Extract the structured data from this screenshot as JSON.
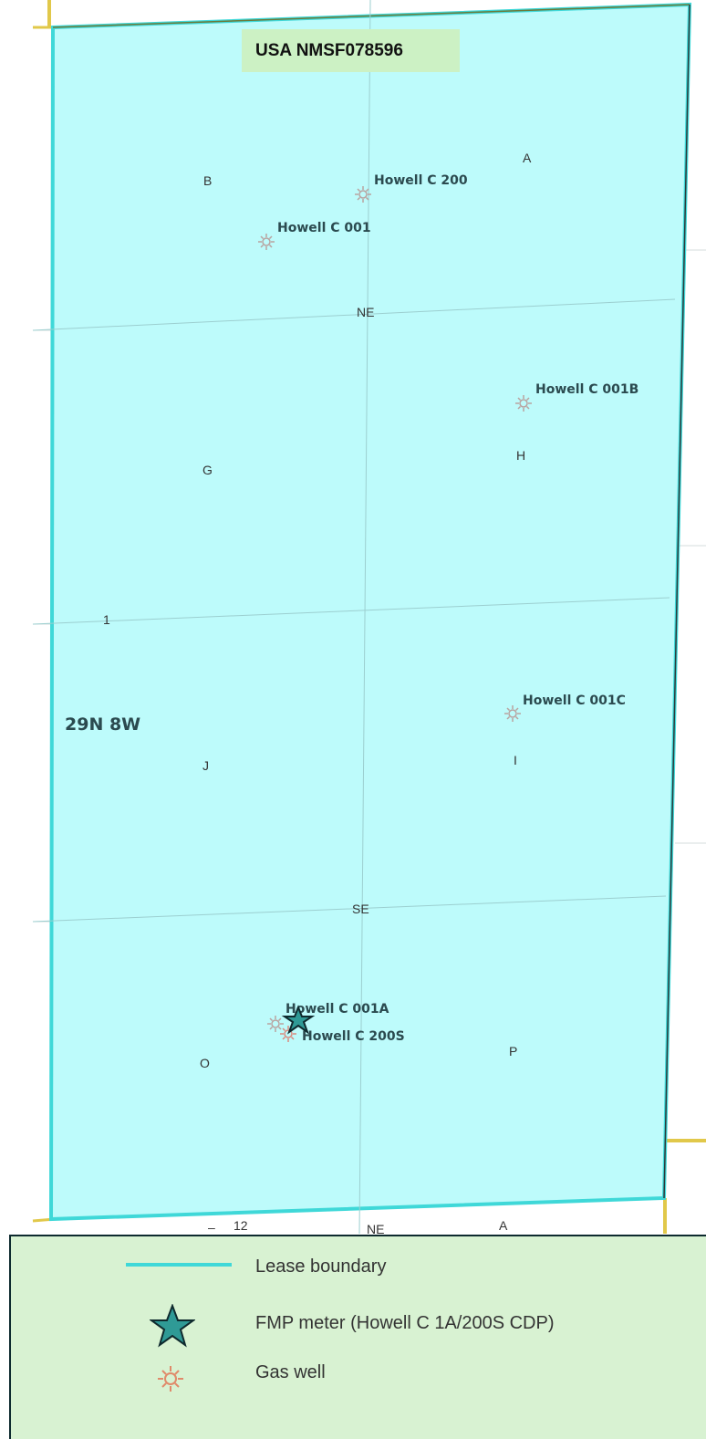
{
  "lease": {
    "name": "USA NMSF078596"
  },
  "township": {
    "label": "29N 8W"
  },
  "section_labels": {
    "section": "1",
    "quarter_ne": "NE",
    "quarter_se": "SE",
    "next_section": "12",
    "next_quarter": "NE",
    "next_lot": "A"
  },
  "lots": [
    "A",
    "B",
    "G",
    "H",
    "I",
    "J",
    "O",
    "P"
  ],
  "wells": [
    {
      "name": "Howell C 200"
    },
    {
      "name": "Howell C 001"
    },
    {
      "name": "Howell C 001B"
    },
    {
      "name": "Howell C 001C"
    },
    {
      "name": "Howell C 001A"
    },
    {
      "name": "Howell C 200S"
    }
  ],
  "legend": {
    "items": [
      {
        "label": "Lease boundary",
        "symbol": "line-icon"
      },
      {
        "label": "FMP meter (Howell C 1A/200S CDP)",
        "symbol": "star-icon"
      },
      {
        "label": "Gas well",
        "symbol": "gas-well-icon"
      }
    ]
  },
  "colors": {
    "lease_fill": "#bdfbfb",
    "lease_border": "#3fd8d8",
    "section_border": "#e1c84a",
    "meter": "#2f9a96",
    "gas_well": "#e08a6a",
    "legend_bg": "#d8f2d2",
    "title_bg": "#ccf1c4"
  }
}
